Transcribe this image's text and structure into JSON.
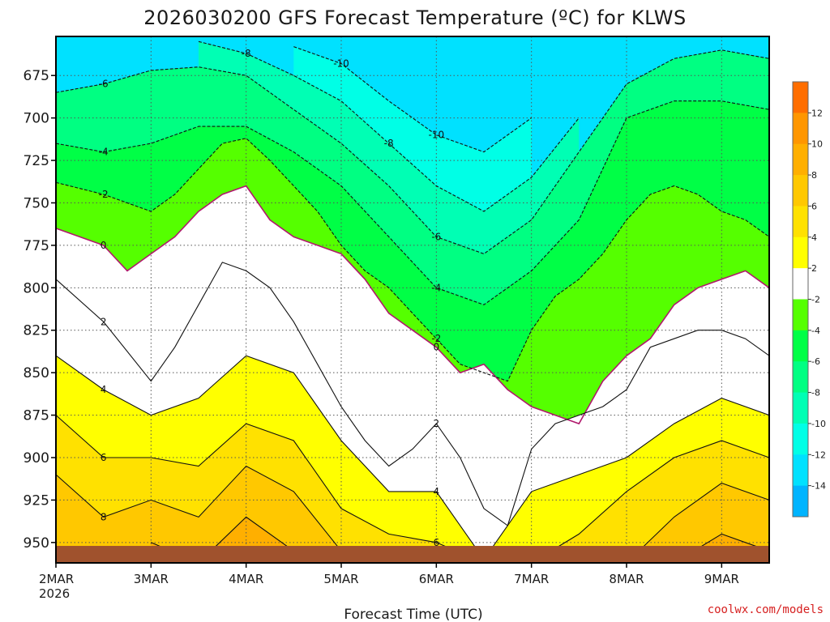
{
  "chart_data": {
    "type": "heatmap",
    "title": "2026030200 GFS Forecast Temperature (ºC) for KLWS",
    "xlabel": "Forecast Time (UTC)",
    "ylabel": "",
    "x_ticks": [
      "2MAR",
      "3MAR",
      "4MAR",
      "5MAR",
      "6MAR",
      "7MAR",
      "8MAR",
      "9MAR"
    ],
    "x_year_label": "2026",
    "x_range": [
      "2026-03-02 00Z",
      "2026-03-09 12Z"
    ],
    "y_ticks": [
      675,
      700,
      725,
      750,
      775,
      800,
      825,
      850,
      875,
      900,
      925,
      950
    ],
    "ylim": [
      962,
      652
    ],
    "y_units": "hPa",
    "grid": true,
    "colorbar": {
      "ticks": [
        12,
        10,
        8,
        6,
        4,
        2,
        -2,
        -4,
        -6,
        -8,
        -10,
        -12,
        -14
      ],
      "colors": [
        "#ff6e00",
        "#ff9600",
        "#ffaf00",
        "#ffc800",
        "#ffe100",
        "#ffff00",
        "#ffffff",
        "#55ff00",
        "#00ff46",
        "#00ff82",
        "#00ffb4",
        "#00ffe6",
        "#00e1ff",
        "#00b4ff"
      ]
    },
    "series": [
      {
        "name": "0",
        "x": [
          "2026-03-02 00Z",
          "2026-03-02 12Z",
          "2026-03-02 18Z",
          "2026-03-03 00Z",
          "2026-03-03 06Z",
          "2026-03-03 12Z",
          "2026-03-03 18Z",
          "2026-03-04 00Z",
          "2026-03-04 06Z",
          "2026-03-04 12Z",
          "2026-03-04 18Z",
          "2026-03-05 00Z",
          "2026-03-05 06Z",
          "2026-03-05 12Z",
          "2026-03-05 18Z",
          "2026-03-06 00Z",
          "2026-03-06 06Z",
          "2026-03-06 12Z",
          "2026-03-06 18Z",
          "2026-03-07 00Z",
          "2026-03-07 06Z",
          "2026-03-07 12Z",
          "2026-03-07 18Z",
          "2026-03-08 00Z",
          "2026-03-08 06Z",
          "2026-03-08 12Z",
          "2026-03-08 18Z",
          "2026-03-09 00Z",
          "2026-03-09 06Z",
          "2026-03-09 12Z"
        ],
        "y": [
          765,
          775,
          790,
          780,
          770,
          755,
          745,
          740,
          760,
          770,
          775,
          780,
          795,
          815,
          825,
          835,
          850,
          845,
          860,
          870,
          875,
          880,
          855,
          840,
          830,
          810,
          800,
          795,
          790,
          800
        ]
      },
      {
        "name": "-2",
        "x": [
          "2026-03-02 00Z",
          "2026-03-02 12Z",
          "2026-03-03 00Z",
          "2026-03-03 06Z",
          "2026-03-03 12Z",
          "2026-03-03 18Z",
          "2026-03-04 00Z",
          "2026-03-04 06Z",
          "2026-03-04 12Z",
          "2026-03-04 18Z",
          "2026-03-05 00Z",
          "2026-03-05 06Z",
          "2026-03-05 12Z",
          "2026-03-05 18Z",
          "2026-03-06 00Z",
          "2026-03-06 06Z",
          "2026-03-06 12Z",
          "2026-03-06 18Z",
          "2026-03-07 00Z",
          "2026-03-07 06Z",
          "2026-03-07 12Z",
          "2026-03-07 18Z",
          "2026-03-08 00Z",
          "2026-03-08 06Z",
          "2026-03-08 12Z",
          "2026-03-08 18Z",
          "2026-03-09 00Z",
          "2026-03-09 06Z",
          "2026-03-09 12Z"
        ],
        "y": [
          738,
          745,
          755,
          745,
          730,
          715,
          712,
          725,
          740,
          755,
          775,
          790,
          800,
          815,
          830,
          845,
          850,
          855,
          825,
          805,
          795,
          780,
          760,
          745,
          740,
          745,
          755,
          760,
          770
        ]
      },
      {
        "name": "-4",
        "x": [
          "2026-03-02 00Z",
          "2026-03-02 12Z",
          "2026-03-03 00Z",
          "2026-03-03 12Z",
          "2026-03-04 00Z",
          "2026-03-04 12Z",
          "2026-03-05 00Z",
          "2026-03-05 12Z",
          "2026-03-06 00Z",
          "2026-03-06 12Z",
          "2026-03-07 00Z",
          "2026-03-07 12Z",
          "2026-03-08 00Z",
          "2026-03-08 12Z",
          "2026-03-09 00Z",
          "2026-03-09 12Z"
        ],
        "y": [
          715,
          720,
          715,
          705,
          705,
          720,
          740,
          770,
          800,
          810,
          790,
          760,
          700,
          690,
          690,
          695
        ]
      },
      {
        "name": "-6",
        "x": [
          "2026-03-02 00Z",
          "2026-03-02 12Z",
          "2026-03-03 00Z",
          "2026-03-03 12Z",
          "2026-03-04 00Z",
          "2026-03-04 12Z",
          "2026-03-05 00Z",
          "2026-03-05 12Z",
          "2026-03-06 00Z",
          "2026-03-06 12Z",
          "2026-03-07 00Z",
          "2026-03-07 12Z",
          "2026-03-08 00Z",
          "2026-03-08 12Z",
          "2026-03-09 00Z",
          "2026-03-09 12Z"
        ],
        "y": [
          685,
          680,
          672,
          670,
          675,
          695,
          715,
          740,
          770,
          780,
          760,
          720,
          680,
          665,
          660,
          665
        ]
      },
      {
        "name": "-8",
        "x": [
          "2026-03-03 12Z",
          "2026-03-04 00Z",
          "2026-03-04 12Z",
          "2026-03-05 00Z",
          "2026-03-05 12Z",
          "2026-03-06 00Z",
          "2026-03-06 12Z",
          "2026-03-07 00Z",
          "2026-03-07 12Z"
        ],
        "y": [
          655,
          662,
          675,
          690,
          715,
          740,
          755,
          735,
          700
        ]
      },
      {
        "name": "-10",
        "x": [
          "2026-03-04 12Z",
          "2026-03-05 00Z",
          "2026-03-05 12Z",
          "2026-03-06 00Z",
          "2026-03-06 12Z",
          "2026-03-07 00Z"
        ],
        "y": [
          658,
          668,
          690,
          710,
          720,
          700
        ]
      },
      {
        "name": "2",
        "x": [
          "2026-03-02 00Z",
          "2026-03-02 12Z",
          "2026-03-03 00Z",
          "2026-03-03 06Z",
          "2026-03-03 12Z",
          "2026-03-03 18Z",
          "2026-03-04 00Z",
          "2026-03-04 06Z",
          "2026-03-04 12Z",
          "2026-03-04 18Z",
          "2026-03-05 00Z",
          "2026-03-05 06Z",
          "2026-03-05 12Z",
          "2026-03-05 18Z",
          "2026-03-06 00Z",
          "2026-03-06 06Z",
          "2026-03-06 12Z",
          "2026-03-06 18Z",
          "2026-03-07 00Z",
          "2026-03-07 06Z",
          "2026-03-07 12Z",
          "2026-03-07 18Z",
          "2026-03-08 00Z",
          "2026-03-08 06Z",
          "2026-03-08 12Z",
          "2026-03-08 18Z",
          "2026-03-09 00Z",
          "2026-03-09 06Z",
          "2026-03-09 12Z"
        ],
        "y": [
          795,
          820,
          855,
          835,
          810,
          785,
          790,
          800,
          820,
          845,
          870,
          890,
          905,
          895,
          880,
          900,
          930,
          940,
          895,
          880,
          875,
          870,
          860,
          835,
          830,
          825,
          825,
          830,
          840
        ]
      },
      {
        "name": "4",
        "x": [
          "2026-03-02 00Z",
          "2026-03-02 12Z",
          "2026-03-03 00Z",
          "2026-03-03 12Z",
          "2026-03-04 00Z",
          "2026-03-04 12Z",
          "2026-03-05 00Z",
          "2026-03-05 12Z",
          "2026-03-06 00Z",
          "2026-03-06 12Z",
          "2026-03-07 00Z",
          "2026-03-07 12Z",
          "2026-03-08 00Z",
          "2026-03-08 12Z",
          "2026-03-09 00Z",
          "2026-03-09 12Z"
        ],
        "y": [
          840,
          860,
          875,
          865,
          840,
          850,
          890,
          920,
          920,
          960,
          920,
          910,
          900,
          880,
          865,
          875
        ]
      },
      {
        "name": "6",
        "x": [
          "2026-03-02 00Z",
          "2026-03-02 12Z",
          "2026-03-03 00Z",
          "2026-03-03 12Z",
          "2026-03-04 00Z",
          "2026-03-04 12Z",
          "2026-03-05 00Z",
          "2026-03-05 12Z",
          "2026-03-06 00Z",
          "2026-03-06 12Z",
          "2026-03-07 00Z",
          "2026-03-07 12Z",
          "2026-03-08 00Z",
          "2026-03-08 12Z",
          "2026-03-09 00Z",
          "2026-03-09 12Z"
        ],
        "y": [
          875,
          900,
          900,
          905,
          880,
          890,
          930,
          945,
          950,
          962,
          962,
          945,
          920,
          900,
          890,
          900
        ]
      },
      {
        "name": "8",
        "x": [
          "2026-03-02 00Z",
          "2026-03-02 12Z",
          "2026-03-03 00Z",
          "2026-03-03 12Z",
          "2026-03-04 00Z",
          "2026-03-04 12Z",
          "2026-03-05 00Z",
          "2026-03-05 12Z",
          "2026-03-08 00Z",
          "2026-03-08 12Z",
          "2026-03-09 00Z",
          "2026-03-09 12Z"
        ],
        "y": [
          910,
          935,
          925,
          935,
          905,
          920,
          955,
          962,
          962,
          935,
          915,
          925
        ]
      },
      {
        "name": "10",
        "x": [
          "2026-03-03 00Z",
          "2026-03-03 12Z",
          "2026-03-04 00Z",
          "2026-03-04 12Z",
          "2026-03-08 12Z",
          "2026-03-09 00Z",
          "2026-03-09 12Z"
        ],
        "y": [
          950,
          962,
          935,
          955,
          962,
          945,
          955
        ]
      }
    ]
  },
  "credit": "coolwx.com/models"
}
